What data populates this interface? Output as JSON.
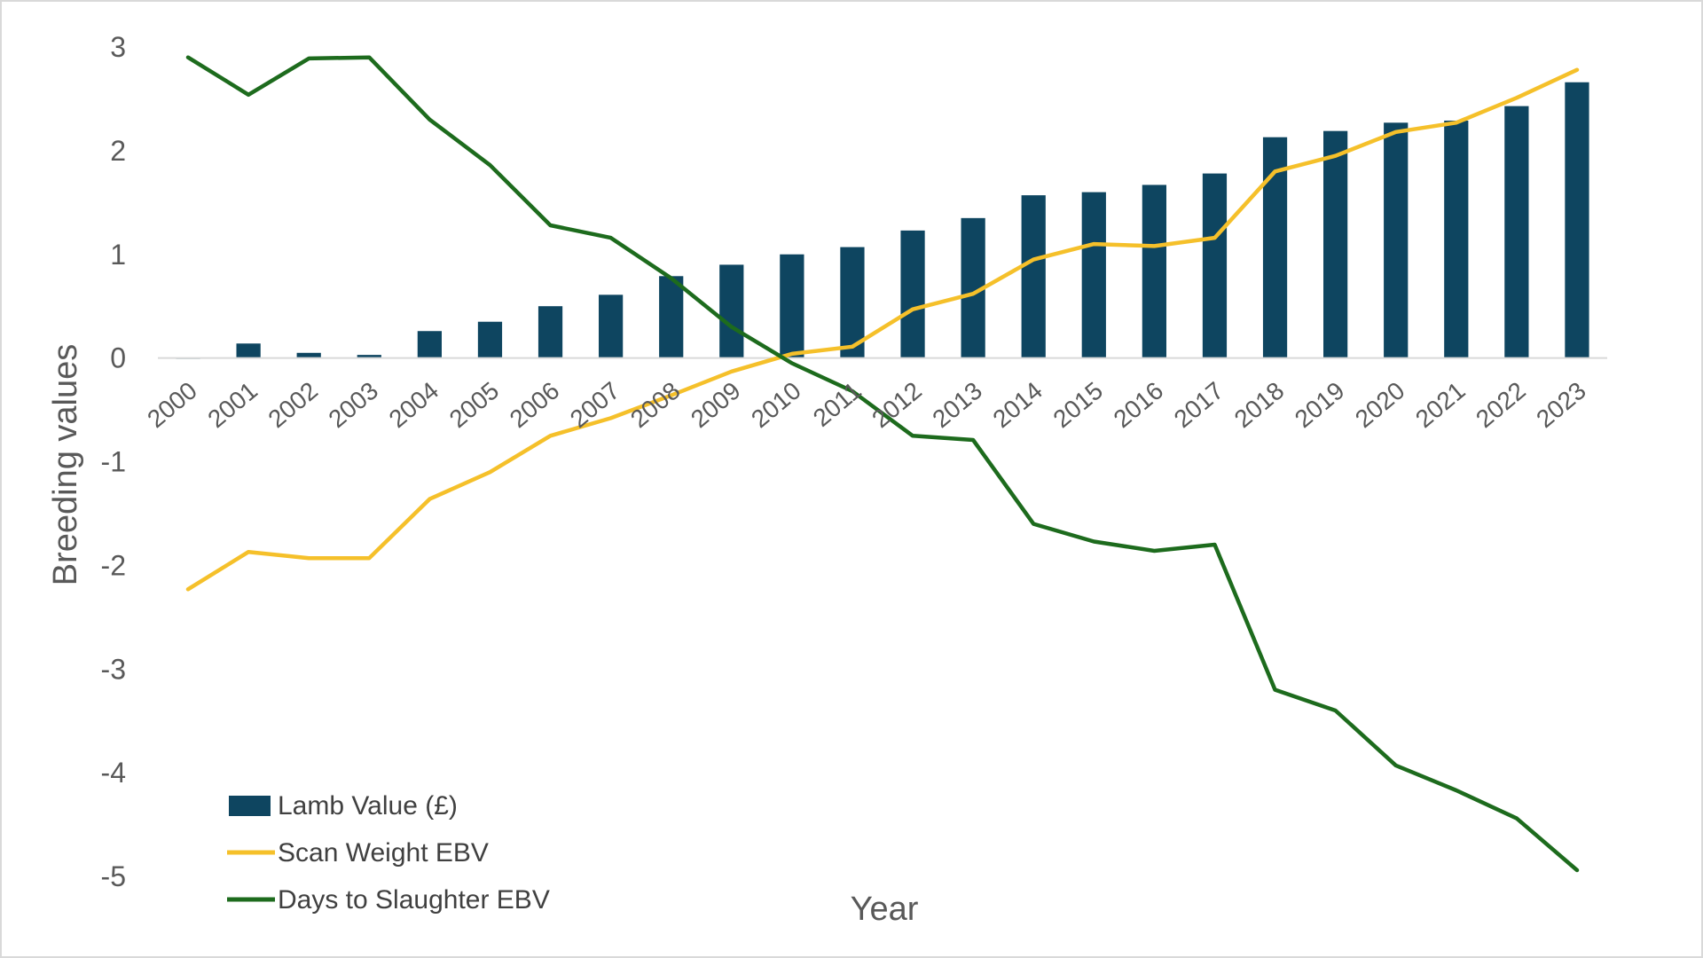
{
  "chart_data": {
    "type": "bar",
    "title": "",
    "xlabel": "Year",
    "ylabel": "Breeding values",
    "ylim": [
      -5,
      3
    ],
    "yticks": [
      3,
      2,
      1,
      0,
      -1,
      -2,
      -3,
      -4,
      -5
    ],
    "grid": false,
    "legend_position": "bottom-left",
    "categories": [
      "2000",
      "2001",
      "2002",
      "2003",
      "2004",
      "2005",
      "2006",
      "2007",
      "2008",
      "2009",
      "2010",
      "2011",
      "2012",
      "2013",
      "2014",
      "2015",
      "2016",
      "2017",
      "2018",
      "2019",
      "2020",
      "2021",
      "2022",
      "2023"
    ],
    "series": [
      {
        "name": "Lamb Value (£)",
        "type": "bar",
        "color": "#0e4560",
        "values": [
          0.0,
          0.14,
          0.05,
          0.03,
          0.26,
          0.35,
          0.5,
          0.61,
          0.79,
          0.9,
          1.0,
          1.07,
          1.23,
          1.35,
          1.57,
          1.6,
          1.67,
          1.78,
          2.13,
          2.19,
          2.27,
          2.29,
          2.43,
          2.66
        ]
      },
      {
        "name": "Scan Weight EBV",
        "type": "line",
        "color": "#f5c02a",
        "values": [
          -2.23,
          -1.87,
          -1.93,
          -1.93,
          -1.36,
          -1.1,
          -0.75,
          -0.58,
          -0.36,
          -0.13,
          0.04,
          0.11,
          0.47,
          0.62,
          0.95,
          1.1,
          1.08,
          1.16,
          1.8,
          1.95,
          2.18,
          2.27,
          2.51,
          2.78
        ]
      },
      {
        "name": "Days to Slaughter EBV",
        "type": "line",
        "color": "#1d6b1d",
        "values": [
          2.9,
          2.54,
          2.89,
          2.9,
          2.3,
          1.86,
          1.28,
          1.16,
          0.77,
          0.3,
          -0.05,
          -0.32,
          -0.75,
          -0.79,
          -1.6,
          -1.77,
          -1.86,
          -1.8,
          -3.2,
          -3.4,
          -3.93,
          -4.17,
          -4.44,
          -4.94
        ]
      }
    ]
  }
}
